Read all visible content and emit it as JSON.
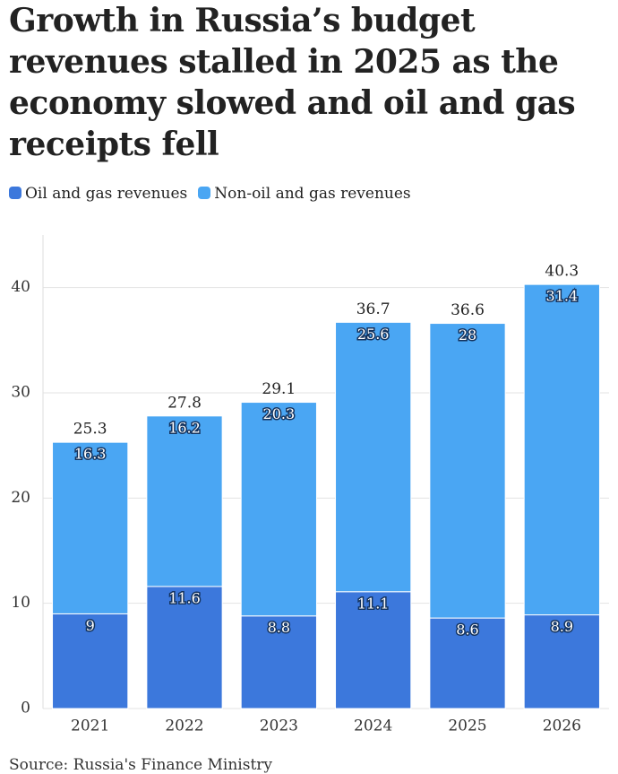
{
  "chart_data": {
    "type": "stacked_bar",
    "title": "Growth in Russia’s budget revenues stalled in 2025 as the economy slowed and oil and gas receipts fell",
    "categories": [
      "2021",
      "2022",
      "2023",
      "2024",
      "2025",
      "2026"
    ],
    "series": [
      {
        "name": "Oil and gas revenues",
        "color": "#3c78dc",
        "values": [
          9,
          11.6,
          8.8,
          11.1,
          8.6,
          8.9
        ]
      },
      {
        "name": "Non-oil and gas revenues",
        "color": "#4aa6f3",
        "values": [
          16.3,
          16.2,
          20.3,
          25.6,
          28,
          31.4
        ]
      }
    ],
    "totals": [
      25.3,
      27.8,
      29.1,
      36.7,
      36.6,
      40.3
    ],
    "ylim": [
      0,
      45
    ],
    "yticks": [
      0,
      10,
      20,
      30,
      40
    ],
    "grid": true,
    "source": "Source: Russia's Finance Ministry"
  }
}
